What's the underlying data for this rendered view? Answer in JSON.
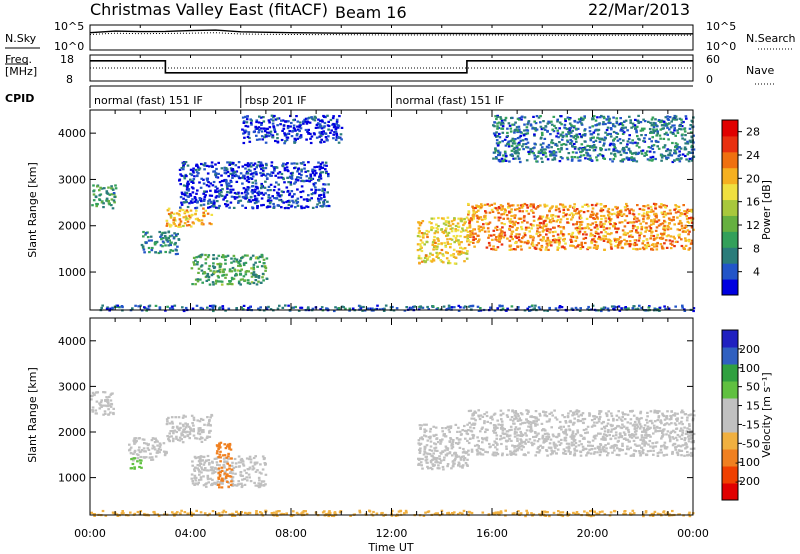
{
  "header": {
    "station": "Christmas Valley East (fitACF)",
    "beam": "Beam 16",
    "date": "22/Mar/2013"
  },
  "colors": {
    "power_scale": [
      "#0000e0",
      "#2255c8",
      "#2a7c7a",
      "#33a05a",
      "#66b040",
      "#a8c83c",
      "#f0e040",
      "#f5b020",
      "#f07010",
      "#e83010",
      "#e00000"
    ],
    "velocity_scale": [
      "#e00000",
      "#f04000",
      "#f08020",
      "#f0b040",
      "#c0c0c0",
      "#c0c0c0",
      "#60c040",
      "#30a040",
      "#3060c0",
      "#2020c0"
    ]
  },
  "chart_data": [
    {
      "type": "line",
      "name": "sky-noise-panel",
      "left_label": "N.Sky",
      "right_label": "N.Search",
      "left_ticks": [
        "10^5",
        "10^0"
      ],
      "right_ticks": [
        "10^5",
        "10^0"
      ],
      "yscale": "log",
      "ylim": [
        1,
        100000
      ],
      "x": [
        0,
        1,
        2,
        3,
        4,
        5,
        6,
        8,
        10,
        12,
        14,
        16,
        18,
        20,
        22,
        24
      ],
      "series": [
        {
          "name": "N.Sky",
          "style": "solid",
          "values": [
            5000,
            12000,
            9000,
            10000,
            15000,
            20000,
            8000,
            5000,
            4000,
            3500,
            3500,
            3200,
            3200,
            3000,
            3000,
            2800
          ]
        },
        {
          "name": "N.Search",
          "style": "dotted",
          "values": [
            2000,
            4000,
            3000,
            3500,
            4000,
            5000,
            2500,
            2000,
            1800,
            1500,
            1500,
            1500,
            1400,
            1400,
            1300,
            1300
          ]
        }
      ]
    },
    {
      "type": "line",
      "name": "frequency-panel",
      "left_label": "Freq.",
      "left_unit": "[MHz]",
      "right_label": "Nave",
      "left_ticks": [
        "18",
        "8"
      ],
      "right_ticks": [
        "60",
        "0"
      ],
      "ylim": [
        8,
        18
      ],
      "series": [
        {
          "name": "Freq.",
          "style": "solid",
          "segments": [
            [
              0,
              3,
              16
            ],
            [
              3,
              15,
              11
            ],
            [
              15,
              24,
              16
            ]
          ]
        },
        {
          "name": "Nave",
          "style": "dotted",
          "segments": [
            [
              0,
              24,
              13
            ]
          ]
        }
      ]
    },
    {
      "type": "table",
      "name": "cpid-panel",
      "label": "CPID",
      "segments": [
        {
          "start": 0,
          "end": 6,
          "text": "normal (fast) 151 IF"
        },
        {
          "start": 6,
          "end": 12,
          "text": "rbsp 201 IF"
        },
        {
          "start": 12,
          "end": 24,
          "text": "normal (fast) 151 IF"
        }
      ]
    },
    {
      "type": "heatmap",
      "name": "power-panel",
      "ylabel": "Slant Range [km]",
      "yticks": [
        1000,
        2000,
        3000,
        4000
      ],
      "ylim": [
        180,
        4500
      ],
      "colorbar_label": "Power [dB]",
      "colorbar_ticks": [
        4,
        8,
        12,
        16,
        20,
        24,
        28
      ],
      "colorbar_range": [
        0,
        30
      ],
      "regions": [
        {
          "t0": 0.0,
          "t1": 1.0,
          "r0": 2400,
          "r1": 2900,
          "value": 9
        },
        {
          "t0": 3.0,
          "t1": 4.8,
          "r0": 2000,
          "r1": 2400,
          "value": 20
        },
        {
          "t0": 2.0,
          "t1": 3.5,
          "r0": 1400,
          "r1": 1900,
          "value": 7
        },
        {
          "t0": 4.0,
          "t1": 7.0,
          "r0": 750,
          "r1": 1400,
          "value": 10
        },
        {
          "t0": 3.5,
          "t1": 9.5,
          "r0": 2400,
          "r1": 3400,
          "value": 3
        },
        {
          "t0": 6.0,
          "t1": 10.0,
          "r0": 3800,
          "r1": 4400,
          "value": 3
        },
        {
          "t0": 13.0,
          "t1": 15.0,
          "r0": 1200,
          "r1": 2200,
          "value": 18
        },
        {
          "t0": 15.0,
          "t1": 24.0,
          "r0": 1500,
          "r1": 2500,
          "value": 22
        },
        {
          "t0": 16.0,
          "t1": 24.0,
          "r0": 3400,
          "r1": 4400,
          "value": 6
        },
        {
          "t0": 0.0,
          "t1": 24.0,
          "r0": 180,
          "r1": 300,
          "value": 5
        }
      ]
    },
    {
      "type": "heatmap",
      "name": "velocity-panel",
      "ylabel": "Slant Range [km]",
      "xlabel": "Time UT",
      "yticks": [
        1000,
        2000,
        3000,
        4000
      ],
      "ylim": [
        180,
        4500
      ],
      "xticks": [
        "00:00",
        "04:00",
        "08:00",
        "12:00",
        "16:00",
        "20:00",
        "00:00"
      ],
      "xlim": [
        0,
        24
      ],
      "colorbar_label": "Velocity [m s⁻¹]",
      "colorbar_ticks": [
        -200,
        -100,
        -50,
        -15,
        15,
        50,
        100,
        200
      ],
      "regions": [
        {
          "t0": 0.0,
          "t1": 1.0,
          "r0": 2400,
          "r1": 2900,
          "value": 0
        },
        {
          "t0": 3.0,
          "t1": 4.8,
          "r0": 1800,
          "r1": 2400,
          "value": 0
        },
        {
          "t0": 1.5,
          "t1": 3.0,
          "r0": 1400,
          "r1": 1900,
          "value": 0
        },
        {
          "t0": 1.5,
          "t1": 2.0,
          "r0": 1200,
          "r1": 1450,
          "value": 60
        },
        {
          "t0": 4.0,
          "t1": 7.0,
          "r0": 800,
          "r1": 1500,
          "value": 0
        },
        {
          "t0": 5.0,
          "t1": 5.6,
          "r0": 800,
          "r1": 1800,
          "value": -60
        },
        {
          "t0": 13.0,
          "t1": 15.0,
          "r0": 1200,
          "r1": 2200,
          "value": 40
        },
        {
          "t0": 15.0,
          "t1": 24.0,
          "r0": 1500,
          "r1": 2500,
          "value": 0
        },
        {
          "t0": 0.0,
          "t1": 24.0,
          "r0": 180,
          "r1": 300,
          "value": -40
        }
      ]
    }
  ]
}
